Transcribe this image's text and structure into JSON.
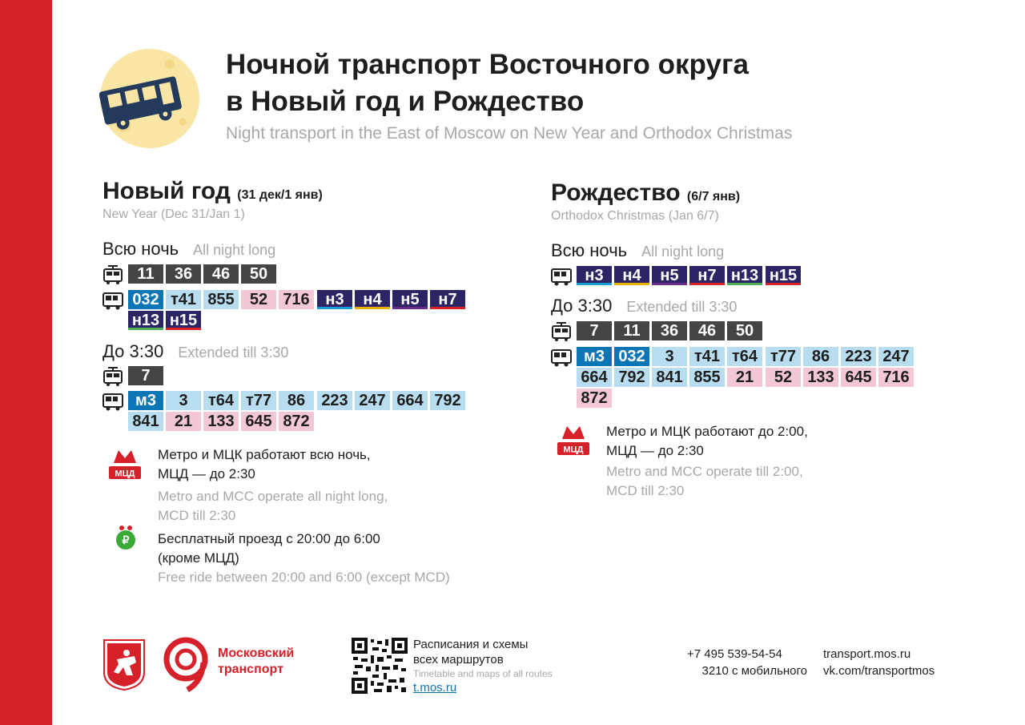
{
  "header": {
    "title_line1": "Ночной транспорт Восточного округа",
    "title_line2": "в Новый год и Рождество",
    "subtitle": "Night transport in the East of Moscow on New Year and Orthodox Christmas"
  },
  "new_year": {
    "title": "Новый год",
    "dates": "(31 дек/1 янв)",
    "subtitle": "New Year (Dec 31/Jan 1)",
    "all_night": {
      "label": "Всю ночь",
      "label_en": "All night long"
    },
    "all_night_tram": [
      "11",
      "36",
      "46",
      "50"
    ],
    "all_night_bus_row1": [
      "032",
      "т41",
      "855",
      "52",
      "716",
      "н3",
      "н4",
      "н5",
      "н7"
    ],
    "all_night_bus_row2": [
      "н13",
      "н15"
    ],
    "extended": {
      "label": "До 3:30",
      "label_en": "Extended till 3:30"
    },
    "extended_tram": [
      "7"
    ],
    "extended_bus_row1": [
      "м3",
      "3",
      "т64",
      "т77",
      "86",
      "223",
      "247",
      "664",
      "792"
    ],
    "extended_bus_row2": [
      "841",
      "21",
      "133",
      "645",
      "872"
    ],
    "metro_text": "Метро и МЦК работают всю ночь,",
    "metro_text2": "МЦД — до 2:30",
    "metro_en": "Metro and MCC operate all night long,",
    "metro_en2": "MCD till 2:30",
    "metro_icon_label": "МЦД",
    "free_text": "Бесплатный проезд с 20:00 до 6:00",
    "free_text2": "(кроме МЦД)",
    "free_en": "Free ride between 20:00 and 6:00 (except MCD)"
  },
  "christmas": {
    "title": "Рождество",
    "dates": "(6/7 янв)",
    "subtitle": "Orthodox Christmas (Jan 6/7)",
    "all_night": {
      "label": "Всю ночь",
      "label_en": "All night long"
    },
    "all_night_bus": [
      "н3",
      "н4",
      "н5",
      "н7",
      "н13",
      "н15"
    ],
    "extended": {
      "label": "До 3:30",
      "label_en": "Extended till 3:30"
    },
    "extended_tram": [
      "7",
      "11",
      "36",
      "46",
      "50"
    ],
    "extended_bus_row1": [
      "м3",
      "032",
      "3",
      "т41",
      "т64",
      "т77",
      "86",
      "223",
      "247"
    ],
    "extended_bus_row2": [
      "664",
      "792",
      "841",
      "855",
      "21",
      "52",
      "133",
      "645",
      "716"
    ],
    "extended_bus_row3": [
      "872"
    ],
    "metro_text": "Метро и МЦК работают до 2:00,",
    "metro_text2": "МЦД — до 2:30",
    "metro_en": "Metro and MCC operate till 2:00,",
    "metro_en2": "MCD till 2:30",
    "metro_icon_label": "МЦД"
  },
  "footer": {
    "brand_line1": "Московский",
    "brand_line2": "транспорт",
    "schedule_line1": "Расписания и схемы",
    "schedule_line2": "всех маршрутов",
    "schedule_en": "Timetable and maps of all routes",
    "schedule_link": "t.mos.ru",
    "phone": "+7 495 539-54-54",
    "mobile": "3210 с мобильного",
    "site": "transport.mos.ru",
    "vk": "vk.com/transportmos"
  },
  "colors": {
    "brand_red": "#d6202a",
    "tram_chip": "#444444",
    "bus_chip": "#b9ddf0",
    "commercial_chip": "#f4c7d8",
    "special_blue_chip": "#0a76b6",
    "night_chip": "#2b2566"
  }
}
